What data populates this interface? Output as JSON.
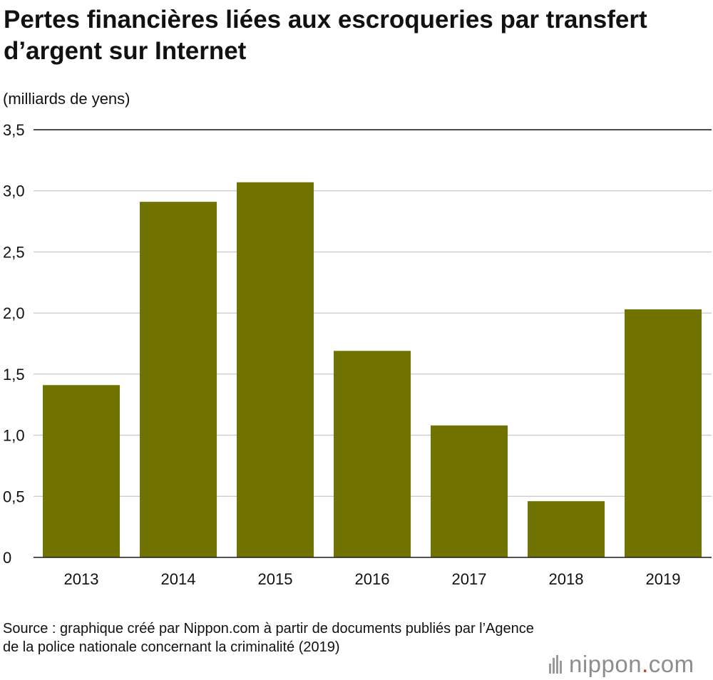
{
  "header": {
    "title": "Pertes financières liées aux escroqueries par transfert d’argent sur Internet"
  },
  "chart_data": {
    "type": "bar",
    "title": "Pertes financières liées aux escroqueries par transfert d’argent sur Internet",
    "unit_label": "(milliards de yens)",
    "xlabel": "",
    "ylabel": "",
    "categories": [
      "2013",
      "2014",
      "2015",
      "2016",
      "2017",
      "2018",
      "2019"
    ],
    "values": [
      1.41,
      2.91,
      3.07,
      1.69,
      1.08,
      0.46,
      2.03
    ],
    "ylim": [
      0,
      3.5
    ],
    "y_ticks": [
      0,
      0.5,
      1.0,
      1.5,
      2.0,
      2.5,
      3.0,
      3.5
    ],
    "y_tick_labels": [
      "0",
      "0,5",
      "1,0",
      "1,5",
      "2,0",
      "2,5",
      "3,0",
      "3,5"
    ],
    "grid": true,
    "bar_color": "#707300",
    "grid_color": "#cccccc",
    "legend": "none"
  },
  "footer": {
    "source_text": "Source : graphique créé par Nippon.com à partir de documents publiés par l’Agence de la police nationale concernant la criminalité (2019)"
  },
  "logo": {
    "text_main": "nippon",
    "text_dot": ".",
    "text_tld": "com",
    "icon": "nippon-logo-bars-icon",
    "accent_color": "#d32f2f"
  }
}
